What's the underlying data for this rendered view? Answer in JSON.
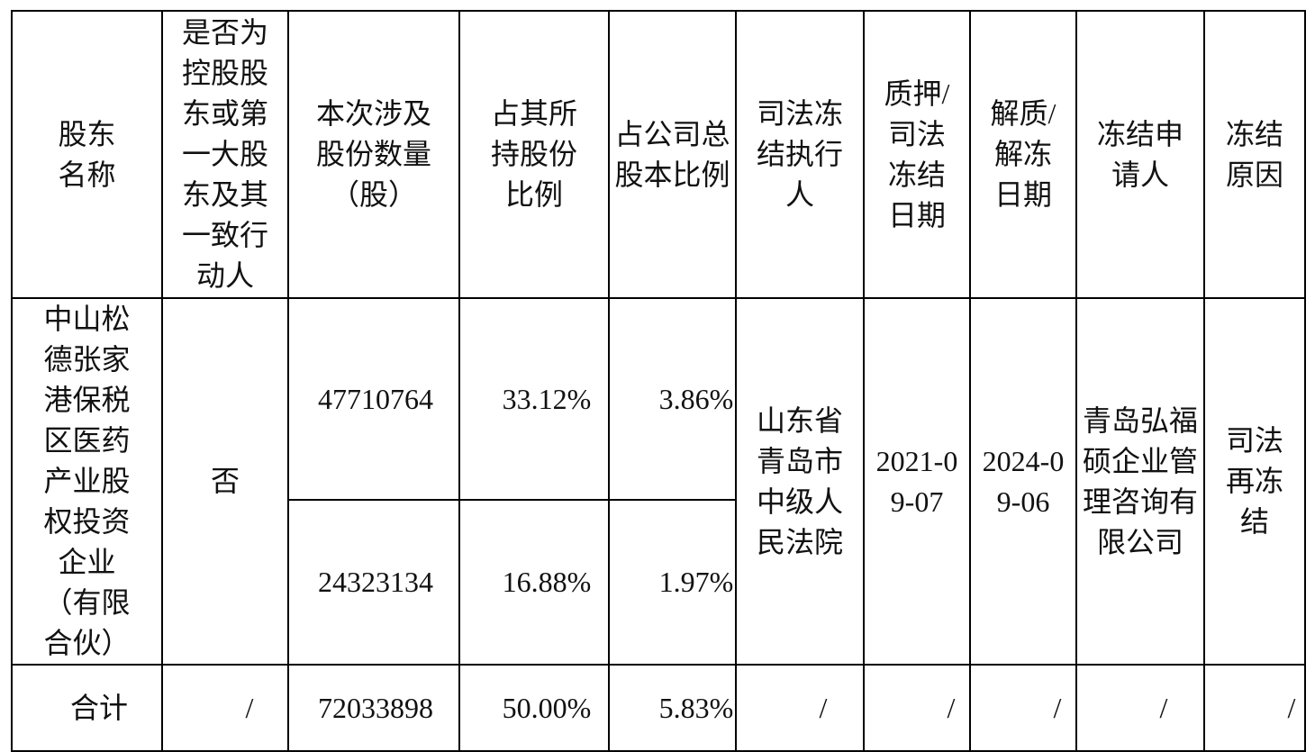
{
  "table": {
    "header": [
      "股东名称",
      "是否为控股股东或第一大股东及其一致行动人",
      "本次涉及股份数量（股）",
      "占其所持股份比例",
      "占公司总股本比例",
      "司法冻结执行人",
      "质押/司法冻结日期",
      "解质/解冻日期",
      "冻结申请人",
      "冻结原因"
    ],
    "rows": [
      [
        "中山松德张家港保税区医药产业股权投资企业（有限合伙）",
        "否",
        "47710764",
        "33.12%",
        "3.86%",
        "山东省青岛市中级人民法院",
        "2021-09-07",
        "2024-09-06",
        "青岛弘福硕企业管理咨询有限公司",
        "司法再冻结"
      ],
      [
        "24323134",
        "16.88%",
        "1.97%"
      ],
      [
        "合计",
        "/",
        "72033898",
        "50.00%",
        "5.83%",
        "/",
        "/",
        "/",
        "/",
        "/"
      ]
    ]
  }
}
